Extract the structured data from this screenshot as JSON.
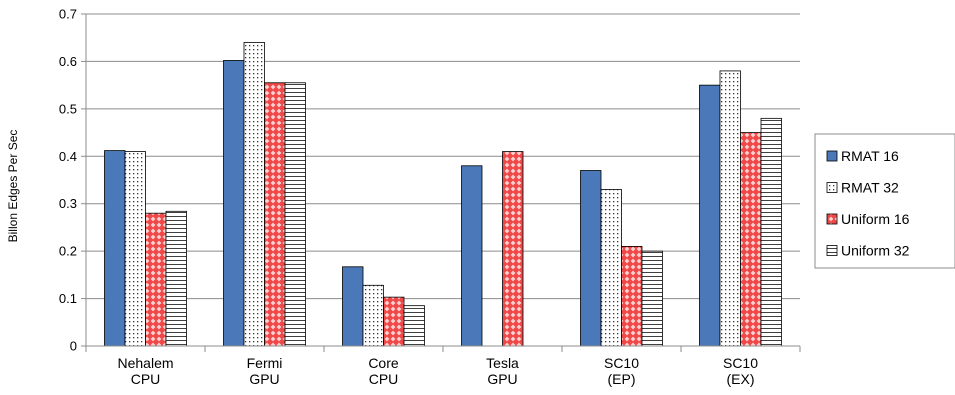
{
  "chart_data": {
    "type": "bar",
    "title": "",
    "xlabel": "",
    "ylabel": "Billon Edges Per Sec",
    "ylim": [
      0,
      0.7
    ],
    "yticks": [
      "0",
      "0.1",
      "0.2",
      "0.3",
      "0.4",
      "0.5",
      "0.6",
      "0.7"
    ],
    "grid": true,
    "legend_position": "right",
    "categories": [
      [
        "Nehalem",
        "CPU"
      ],
      [
        "Fermi",
        "GPU"
      ],
      [
        "Core",
        "CPU"
      ],
      [
        "Tesla",
        "GPU"
      ],
      [
        "SC10",
        "(EP)"
      ],
      [
        "SC10",
        "(EX)"
      ]
    ],
    "series": [
      {
        "name": "RMAT 16",
        "pattern": "solid",
        "color": "#4A78B8",
        "values": [
          0.412,
          0.602,
          0.167,
          0.38,
          0.37,
          0.55
        ]
      },
      {
        "name": "RMAT 32",
        "pattern": "dots",
        "color": "#ffffff",
        "values": [
          0.41,
          0.64,
          0.128,
          null,
          0.33,
          0.58
        ]
      },
      {
        "name": "Uniform 16",
        "pattern": "red-diamond",
        "color": "#F03C3C",
        "values": [
          0.28,
          0.555,
          0.103,
          0.41,
          0.21,
          0.45
        ]
      },
      {
        "name": "Uniform 32",
        "pattern": "horizontal-lines",
        "color": "#ffffff",
        "values": [
          0.284,
          0.555,
          0.085,
          null,
          0.2,
          0.48
        ]
      }
    ]
  }
}
